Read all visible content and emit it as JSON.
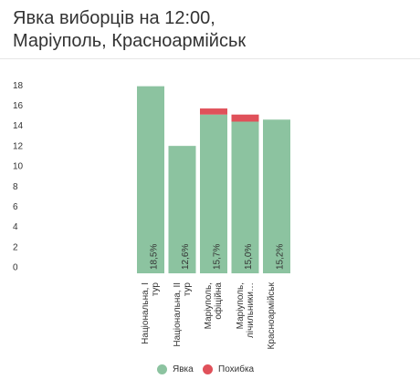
{
  "chart_data": {
    "type": "stacked_bar",
    "title": "Явка виборців на 12:00, Маріуполь, Красноармійськ",
    "categories": [
      "Національна, I тур",
      "Національна, II тур",
      "Маріуполь, офіційна",
      "Маріуполь, лічильники…",
      "Красноармійськ"
    ],
    "series": [
      {
        "name": "Явка",
        "color": "#8cc3a0",
        "values": [
          18.5,
          12.6,
          15.7,
          15.0,
          15.2
        ],
        "value_labels": [
          "18,5%",
          "12,6%",
          "15,7%",
          "15,0%",
          "15,2%"
        ]
      },
      {
        "name": "Похибка",
        "color": "#e0515a",
        "values": [
          0,
          0,
          0.6,
          0.7,
          0
        ]
      }
    ],
    "ylim": [
      0,
      20
    ],
    "yticks": [
      0,
      2,
      4,
      6,
      8,
      10,
      12,
      14,
      16,
      18
    ],
    "grid": false,
    "legend": "bottom"
  }
}
